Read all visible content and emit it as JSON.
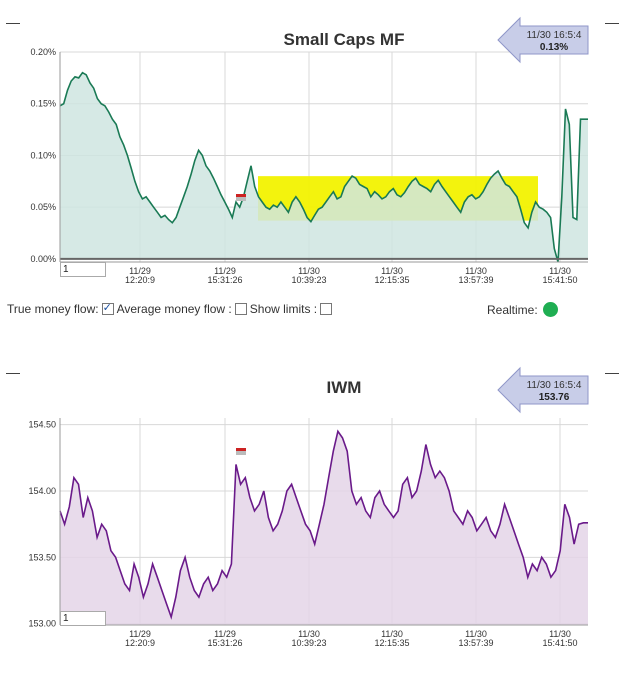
{
  "charts": [
    {
      "id": "mf",
      "title": "Small Caps MF",
      "minus": "—",
      "callout": {
        "time": "11/30 16:5:4",
        "value": "0.13%"
      },
      "input_value": "1",
      "colors": {
        "line": "#1a7a55",
        "fill": "#cfe5e0",
        "highlight": "#f2f200"
      },
      "chart_data": {
        "type": "area",
        "y_ticks": [
          "0.00%",
          "0.05%",
          "0.10%",
          "0.15%",
          "0.20%"
        ],
        "y_tick_values": [
          0,
          0.05,
          0.1,
          0.15,
          0.2
        ],
        "ylim": [
          -0.003,
          0.2
        ],
        "x_ticks": [
          {
            "date": "11/29",
            "time": "12:20:9"
          },
          {
            "date": "11/29",
            "time": "15:31:26"
          },
          {
            "date": "11/30",
            "time": "10:39:23"
          },
          {
            "date": "11/30",
            "time": "12:15:35"
          },
          {
            "date": "11/30",
            "time": "13:57:39"
          },
          {
            "date": "11/30",
            "time": "15:41:50"
          }
        ],
        "highlight_range": {
          "y": [
            0.037,
            0.08
          ]
        },
        "values": [
          0.148,
          0.15,
          0.163,
          0.172,
          0.176,
          0.175,
          0.18,
          0.178,
          0.17,
          0.165,
          0.155,
          0.15,
          0.148,
          0.142,
          0.135,
          0.13,
          0.118,
          0.11,
          0.1,
          0.088,
          0.075,
          0.065,
          0.058,
          0.06,
          0.055,
          0.05,
          0.045,
          0.04,
          0.042,
          0.038,
          0.035,
          0.04,
          0.05,
          0.06,
          0.07,
          0.082,
          0.095,
          0.105,
          0.1,
          0.09,
          0.085,
          0.078,
          0.07,
          0.062,
          0.055,
          0.048,
          0.04,
          0.055,
          0.05,
          0.06,
          0.075,
          0.09,
          0.07,
          0.06,
          0.055,
          0.05,
          0.048,
          0.052,
          0.05,
          0.055,
          0.05,
          0.045,
          0.055,
          0.06,
          0.055,
          0.048,
          0.04,
          0.036,
          0.042,
          0.048,
          0.05,
          0.055,
          0.06,
          0.065,
          0.058,
          0.06,
          0.07,
          0.075,
          0.08,
          0.078,
          0.072,
          0.07,
          0.068,
          0.06,
          0.065,
          0.062,
          0.058,
          0.06,
          0.065,
          0.068,
          0.062,
          0.06,
          0.064,
          0.07,
          0.075,
          0.078,
          0.072,
          0.07,
          0.068,
          0.065,
          0.072,
          0.076,
          0.07,
          0.065,
          0.06,
          0.055,
          0.05,
          0.045,
          0.055,
          0.06,
          0.062,
          0.058,
          0.06,
          0.065,
          0.072,
          0.078,
          0.082,
          0.085,
          0.078,
          0.072,
          0.07,
          0.065,
          0.06,
          0.048,
          0.035,
          0.03,
          0.045,
          0.055,
          0.05,
          0.048,
          0.045,
          0.04,
          0.01,
          -0.003,
          0.06,
          0.145,
          0.13,
          0.04,
          0.038,
          0.135,
          0.135,
          0.135
        ]
      }
    },
    {
      "id": "iwm",
      "title": "IWM",
      "minus": "—",
      "callout": {
        "time": "11/30 16:5:4",
        "value": "153.76"
      },
      "input_value": "1",
      "colors": {
        "line": "#6a1a8a",
        "fill": "#e4d5e8"
      },
      "chart_data": {
        "type": "area",
        "y_ticks": [
          "153.00",
          "153.50",
          "154.00",
          "154.50"
        ],
        "y_tick_values": [
          153.0,
          153.5,
          154.0,
          154.5
        ],
        "ylim": [
          152.99,
          154.55
        ],
        "x_ticks": [
          {
            "date": "11/29",
            "time": "12:20:9"
          },
          {
            "date": "11/29",
            "time": "15:31:26"
          },
          {
            "date": "11/30",
            "time": "10:39:23"
          },
          {
            "date": "11/30",
            "time": "12:15:35"
          },
          {
            "date": "11/30",
            "time": "13:57:39"
          },
          {
            "date": "11/30",
            "time": "15:41:50"
          }
        ],
        "values": [
          153.85,
          153.75,
          153.88,
          154.1,
          154.05,
          153.8,
          153.95,
          153.85,
          153.65,
          153.75,
          153.7,
          153.55,
          153.5,
          153.4,
          153.3,
          153.25,
          153.45,
          153.35,
          153.2,
          153.3,
          153.45,
          153.35,
          153.25,
          153.15,
          153.05,
          153.2,
          153.4,
          153.5,
          153.35,
          153.25,
          153.2,
          153.3,
          153.35,
          153.25,
          153.3,
          153.4,
          153.35,
          153.45,
          154.2,
          154.05,
          154.1,
          153.95,
          153.85,
          153.9,
          154.0,
          153.8,
          153.7,
          153.75,
          153.85,
          154.0,
          154.05,
          153.95,
          153.85,
          153.75,
          153.7,
          153.6,
          153.75,
          153.9,
          154.1,
          154.3,
          154.45,
          154.4,
          154.3,
          154.0,
          153.9,
          153.95,
          153.85,
          153.8,
          153.95,
          154.0,
          153.9,
          153.85,
          153.8,
          153.85,
          154.05,
          154.1,
          153.95,
          154.0,
          154.15,
          154.35,
          154.2,
          154.1,
          154.15,
          154.1,
          154.0,
          153.85,
          153.8,
          153.75,
          153.85,
          153.8,
          153.7,
          153.75,
          153.8,
          153.7,
          153.65,
          153.75,
          153.9,
          153.8,
          153.7,
          153.6,
          153.5,
          153.35,
          153.45,
          153.4,
          153.5,
          153.45,
          153.35,
          153.4,
          153.55,
          153.9,
          153.8,
          153.6,
          153.75,
          153.76,
          153.76
        ]
      }
    }
  ],
  "controls": {
    "true_money_flow": "True money flow:",
    "average_money_flow": "Average money flow :",
    "show_limits": "Show limits :",
    "realtime": "Realtime:"
  }
}
